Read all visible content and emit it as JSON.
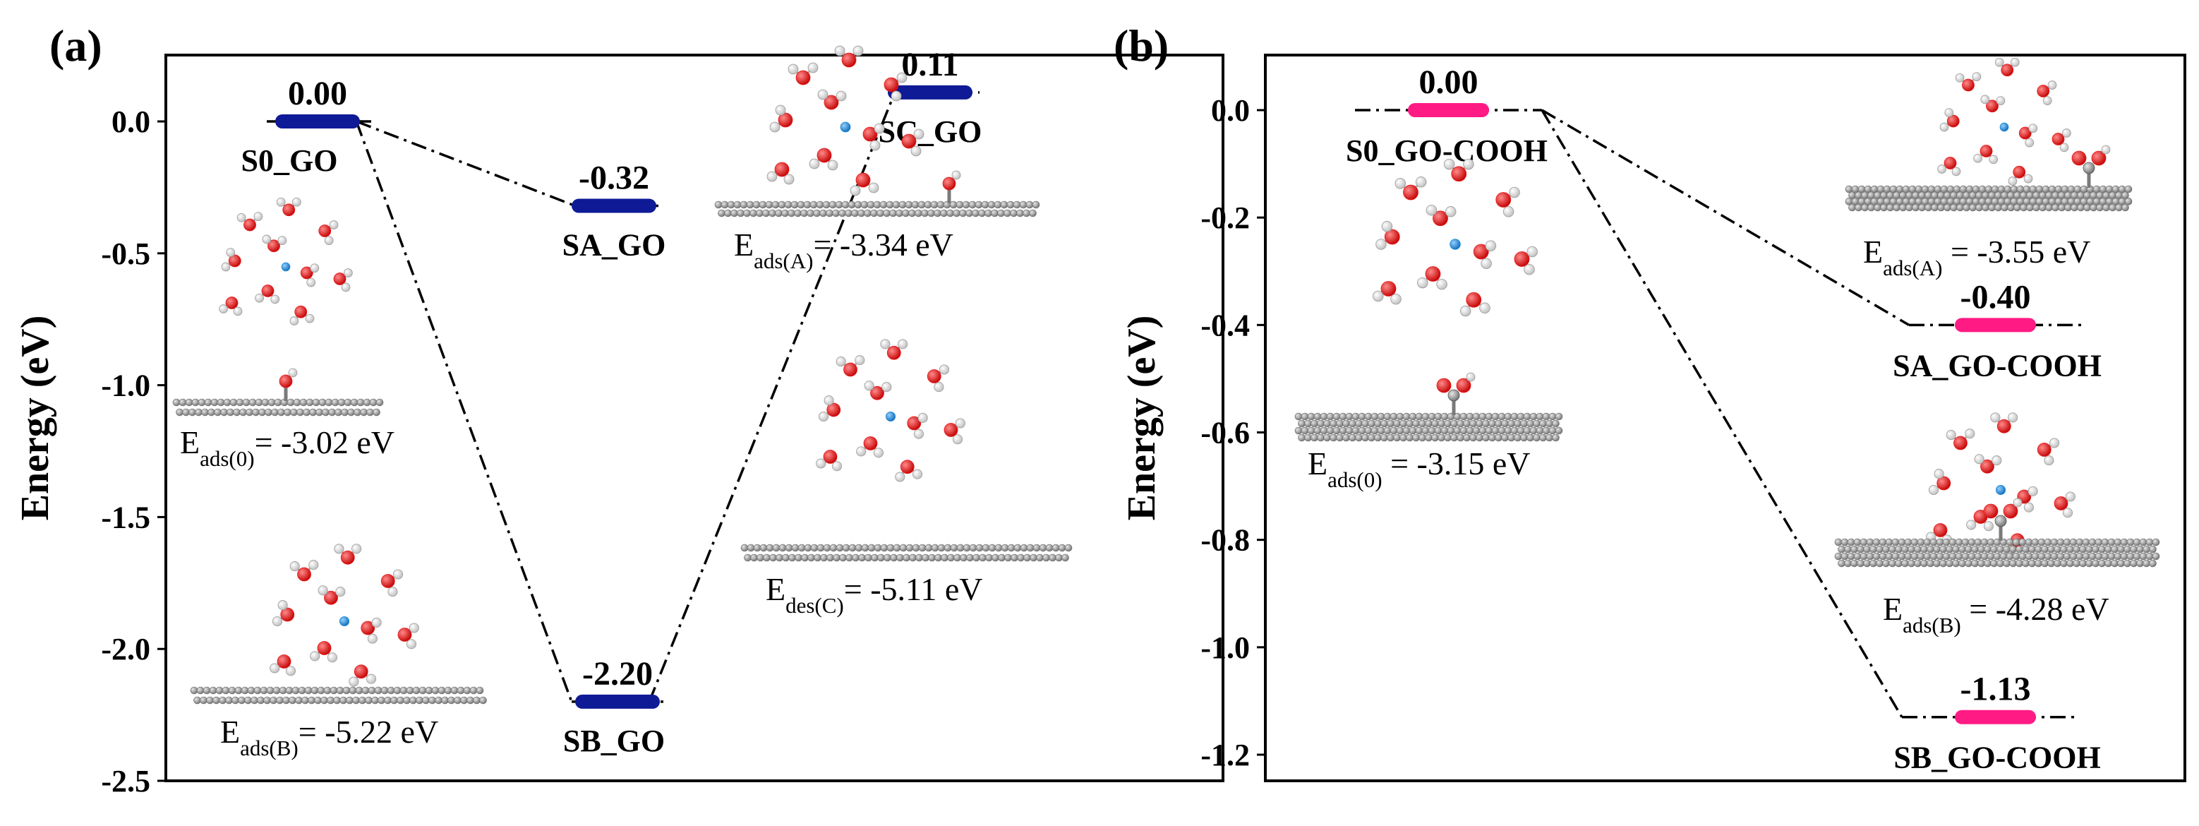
{
  "colors": {
    "panel_a_level": "#0f1a96",
    "panel_b_level": "#ff1a84",
    "frame": "#000000",
    "carbon": "#8c8c8c",
    "oxygen": "#e8191b",
    "hydrogen": "#f2f2f2",
    "ion": "#1e8fd6"
  },
  "chart_data": [
    {
      "type": "energy-diagram",
      "panel_label": "(a)",
      "ylabel": "Energy (eV)",
      "ylim": [
        -2.5,
        0.25
      ],
      "yticks": [
        0.0,
        -0.5,
        -1.0,
        -1.5,
        -2.0,
        -2.5
      ],
      "ytick_labels": [
        "0.0",
        "-0.5",
        "-1.0",
        "-1.5",
        "-2.0",
        "-2.5"
      ],
      "levels": [
        {
          "id": "S0",
          "name": "S0_GO",
          "energy": 0.0,
          "value_label": "0.00"
        },
        {
          "id": "SA",
          "name": "SA_GO",
          "energy": -0.32,
          "value_label": "-0.32"
        },
        {
          "id": "SB",
          "name": "SB_GO",
          "energy": -2.2,
          "value_label": "-2.20"
        },
        {
          "id": "SC",
          "name": "SC_GO",
          "energy": 0.11,
          "value_label": "0.11"
        }
      ],
      "connections": [
        [
          "S0",
          "SA"
        ],
        [
          "S0",
          "SB"
        ],
        [
          "SB",
          "SC"
        ]
      ],
      "annotations": [
        {
          "main": "E",
          "sub": "ads(0)",
          "rest": "= -3.02 eV"
        },
        {
          "main": "E",
          "sub": "ads(A)",
          "rest": "= -3.34 eV"
        },
        {
          "main": "E",
          "sub": "des(C)",
          "rest": "= -5.11 eV"
        },
        {
          "main": "E",
          "sub": "ads(B)",
          "rest": "= -5.22 eV"
        }
      ]
    },
    {
      "type": "energy-diagram",
      "panel_label": "(b)",
      "ylabel": "Energy (eV)",
      "ylim": [
        -1.2,
        0.08
      ],
      "yticks": [
        0.0,
        -0.2,
        -0.4,
        -0.6,
        -0.8,
        -1.0,
        -1.2
      ],
      "ytick_labels": [
        "0.0",
        "-0.2",
        "-0.4",
        "-0.6",
        "-0.8",
        "-1.0",
        "-1.2"
      ],
      "levels": [
        {
          "id": "S0",
          "name": "S0_GO-COOH",
          "energy": 0.0,
          "value_label": "0.00"
        },
        {
          "id": "SA",
          "name": "SA_GO-COOH",
          "energy": -0.4,
          "value_label": "-0.40"
        },
        {
          "id": "SB",
          "name": "SB_GO-COOH",
          "energy": -1.13,
          "value_label": "-1.13"
        }
      ],
      "connections": [
        [
          "S0",
          "SA"
        ],
        [
          "S0",
          "SB"
        ]
      ],
      "annotations": [
        {
          "main": "E",
          "sub": "ads(A)",
          "rest": " = -3.55 eV"
        },
        {
          "main": "E",
          "sub": "ads(0)",
          "rest": " = -3.15 eV"
        },
        {
          "main": "E",
          "sub": "ads(B)",
          "rest": " = -4.28 eV"
        }
      ]
    }
  ]
}
